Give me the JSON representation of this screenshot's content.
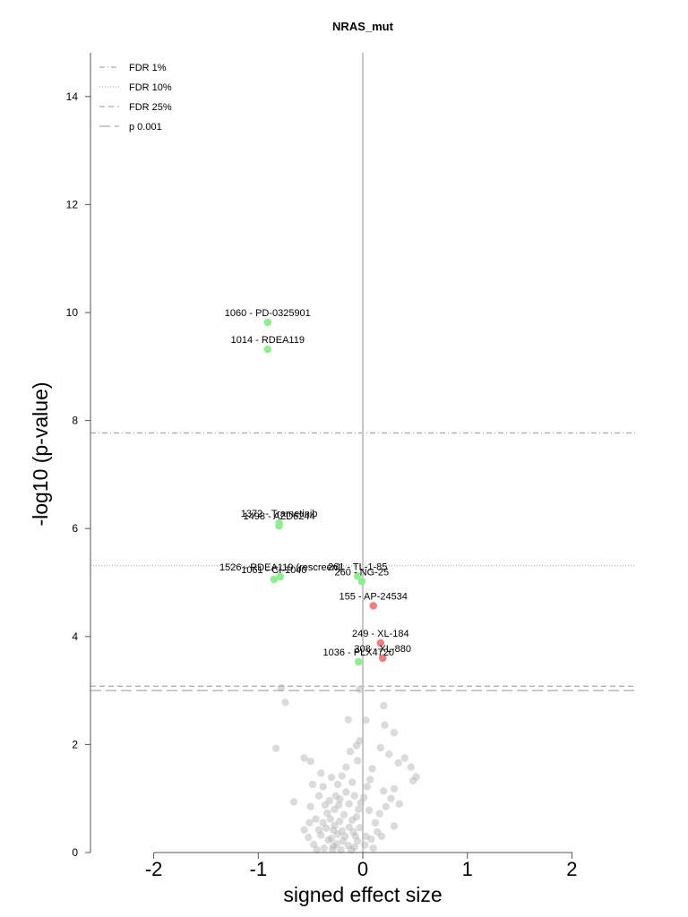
{
  "chart_data": {
    "type": "scatter",
    "title": "NRAS_mut",
    "xlabel": "signed effect size",
    "ylabel": "-log10 (p-value)",
    "xlim": [
      -2.6,
      2.6
    ],
    "ylim": [
      0,
      14.8
    ],
    "x_ticks": [
      -2,
      -1,
      0,
      1,
      2
    ],
    "y_ticks": [
      0,
      2,
      4,
      6,
      8,
      10,
      12,
      14
    ],
    "grid": false,
    "legend_position": "top-left",
    "thresholds": [
      {
        "name": "FDR 1%",
        "y": 7.77,
        "style": "dashdot"
      },
      {
        "name": "FDR 10%",
        "y": 5.31,
        "style": "dotted"
      },
      {
        "name": "FDR 25%",
        "y": 3.08,
        "style": "dashed"
      },
      {
        "name": "p 0.001",
        "y": 3.0,
        "style": "longdash"
      }
    ],
    "colors": {
      "sensitive": "#90ee90",
      "resistant": "#f08080",
      "background": "#b0b0b0",
      "threshold": "#aaaaaa",
      "zero_line": "#c8c8c8"
    },
    "labeled_points": [
      {
        "label": "1060 - PD-0325901",
        "x": -0.91,
        "y": 9.82,
        "group": "sensitive"
      },
      {
        "label": "1014 - RDEA119",
        "x": -0.91,
        "y": 9.32,
        "group": "sensitive"
      },
      {
        "label": "1372 - Trametinib",
        "x": -0.8,
        "y": 6.1,
        "group": "sensitive"
      },
      {
        "label": "1498 - AZD6244",
        "x": -0.8,
        "y": 6.05,
        "group": "sensitive"
      },
      {
        "label": "1526 - RDEA119 (rescreen)",
        "x": -0.79,
        "y": 5.11,
        "group": "sensitive"
      },
      {
        "label": "1061 - CI-1040",
        "x": -0.85,
        "y": 5.06,
        "group": "sensitive"
      },
      {
        "label": "261 - TL-1-85",
        "x": -0.05,
        "y": 5.12,
        "group": "sensitive"
      },
      {
        "label": "260 - NG-25",
        "x": -0.01,
        "y": 5.02,
        "group": "sensitive"
      },
      {
        "label": "155 - AP-24534",
        "x": 0.1,
        "y": 4.57,
        "group": "resistant"
      },
      {
        "label": "249 - XL-184",
        "x": 0.17,
        "y": 3.88,
        "group": "resistant"
      },
      {
        "label": "308 - XL-880",
        "x": 0.19,
        "y": 3.6,
        "group": "resistant"
      },
      {
        "label": "1036 - PLX4720",
        "x": -0.04,
        "y": 3.53,
        "group": "sensitive"
      }
    ],
    "background_points": [
      [
        -0.78,
        3.05
      ],
      [
        -0.74,
        2.78
      ],
      [
        -0.03,
        3.02
      ],
      [
        0.2,
        2.72
      ],
      [
        -0.14,
        2.46
      ],
      [
        0.03,
        2.45
      ],
      [
        0.21,
        2.36
      ],
      [
        0.3,
        2.22
      ],
      [
        -0.83,
        1.93
      ],
      [
        0.17,
        1.94
      ],
      [
        -0.03,
        2.07
      ],
      [
        -0.06,
        1.98
      ],
      [
        -0.12,
        1.87
      ],
      [
        0.25,
        1.82
      ],
      [
        0.34,
        1.66
      ],
      [
        0.4,
        1.75
      ],
      [
        -0.56,
        1.75
      ],
      [
        -0.5,
        1.69
      ],
      [
        0.48,
        1.33
      ],
      [
        0.51,
        1.4
      ],
      [
        0.46,
        1.58
      ],
      [
        -0.4,
        1.47
      ],
      [
        -0.3,
        1.39
      ],
      [
        -0.2,
        1.42
      ],
      [
        0.07,
        1.35
      ],
      [
        0.2,
        1.14
      ],
      [
        0.3,
        1.18
      ],
      [
        0.22,
        0.85
      ],
      [
        0.16,
        0.72
      ],
      [
        0.3,
        0.49
      ],
      [
        0.14,
        0.38
      ],
      [
        -0.66,
        0.94
      ],
      [
        -0.48,
        1.26
      ],
      [
        -0.38,
        1.22
      ],
      [
        -0.24,
        1.26
      ],
      [
        -0.1,
        1.3
      ],
      [
        0.04,
        1.22
      ],
      [
        -0.45,
        0.62
      ],
      [
        -0.56,
        0.42
      ],
      [
        -0.51,
        0.55
      ],
      [
        -0.36,
        0.88
      ],
      [
        -0.22,
        0.99
      ],
      [
        -0.08,
        1.05
      ],
      [
        -0.02,
        0.92
      ],
      [
        -0.31,
        0.62
      ],
      [
        -0.18,
        0.7
      ],
      [
        -0.06,
        0.66
      ],
      [
        -0.28,
        0.41
      ],
      [
        -0.17,
        0.3
      ],
      [
        -0.09,
        0.38
      ],
      [
        -0.4,
        0.32
      ],
      [
        -0.33,
        0.23
      ],
      [
        -0.25,
        0.16
      ],
      [
        -0.14,
        0.13
      ],
      [
        -0.05,
        0.21
      ],
      [
        -0.47,
        0.15
      ],
      [
        -0.37,
        0.08
      ],
      [
        -0.29,
        0.06
      ],
      [
        -0.21,
        0.05
      ],
      [
        -0.11,
        0.05
      ],
      [
        -0.3,
        0.26
      ],
      [
        -0.24,
        0.34
      ],
      [
        -0.19,
        0.21
      ],
      [
        -0.35,
        0.45
      ],
      [
        -0.27,
        0.5
      ],
      [
        -0.22,
        0.58
      ],
      [
        -0.13,
        0.47
      ],
      [
        -0.03,
        0.46
      ],
      [
        0.03,
        0.3
      ],
      [
        0.08,
        0.25
      ],
      [
        0.1,
        0.08
      ],
      [
        -0.42,
        0.42
      ],
      [
        -0.34,
        0.73
      ],
      [
        -0.27,
        0.8
      ],
      [
        -0.13,
        0.9
      ],
      [
        -0.26,
        1.05
      ],
      [
        -0.16,
        1.12
      ],
      [
        0.01,
        1.02
      ],
      [
        0.06,
        0.78
      ],
      [
        -0.04,
        0.8
      ],
      [
        0.12,
        0.55
      ],
      [
        -0.52,
        0.28
      ],
      [
        -0.44,
        0.05
      ],
      [
        -0.08,
        0.1
      ],
      [
        0.02,
        0.14
      ],
      [
        0.18,
        0.3
      ],
      [
        -0.28,
        0.12
      ],
      [
        -0.2,
        0.4
      ],
      [
        -0.38,
        0.55
      ],
      [
        -0.1,
        0.6
      ],
      [
        -0.32,
        0.96
      ],
      [
        -0.42,
        1.05
      ],
      [
        -0.5,
        0.85
      ],
      [
        0.27,
        1.0
      ],
      [
        0.35,
        0.9
      ],
      [
        -0.16,
        1.58
      ],
      [
        -0.05,
        1.7
      ],
      [
        0.09,
        1.55
      ],
      [
        -0.23,
        0.88
      ],
      [
        -0.07,
        0.3
      ]
    ]
  }
}
